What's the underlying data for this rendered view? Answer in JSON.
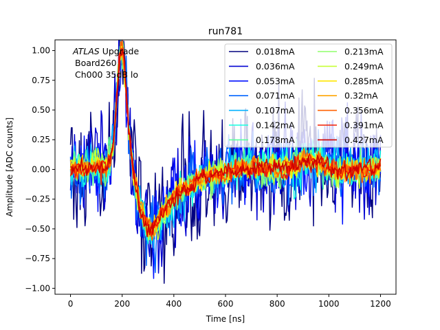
{
  "chart_data": {
    "type": "line",
    "title": "run781",
    "xlabel": "Time [ns]",
    "ylabel": "Amplitude [ADC counts]",
    "xlim": [
      -60,
      1260
    ],
    "ylim": [
      -1.05,
      1.09
    ],
    "xticks": [
      0,
      200,
      400,
      600,
      800,
      1000,
      1200
    ],
    "xtick_labels": [
      "0",
      "200",
      "400",
      "600",
      "800",
      "1000",
      "1200"
    ],
    "yticks": [
      -1.0,
      -0.75,
      -0.5,
      -0.25,
      0.0,
      0.25,
      0.5,
      0.75,
      1.0
    ],
    "ytick_labels": [
      "−1.00",
      "−0.75",
      "−0.50",
      "−0.25",
      "0.00",
      "0.25",
      "0.50",
      "0.75",
      "1.00"
    ],
    "legend_position": "top-right",
    "legend_columns": 2,
    "annotation": {
      "line1_italic": "ATLAS",
      "line1_rest": " Upgrade",
      "line2": "Board260",
      "line3": "Ch000 35dB lo"
    },
    "x_range_ns": [
      0,
      1200
    ],
    "sample_step_ns": 3.125,
    "pulse_shape": {
      "peak_time_ns": 198,
      "peak_amplitude": 0.99,
      "undershoot_time_ns": 310,
      "undershoot_amplitude": -0.56,
      "bump_time_ns": 930,
      "bump_amplitude": 0.09
    },
    "series": [
      {
        "name": "0.018mA",
        "color": "#00007f",
        "noise": 0.26
      },
      {
        "name": "0.036mA",
        "color": "#0000d1",
        "noise": 0.2
      },
      {
        "name": "0.053mA",
        "color": "#0010ff",
        "noise": 0.16
      },
      {
        "name": "0.071mA",
        "color": "#0064ff",
        "noise": 0.13
      },
      {
        "name": "0.107mA",
        "color": "#00b0ff",
        "noise": 0.1
      },
      {
        "name": "0.142mA",
        "color": "#16ffe1",
        "noise": 0.085
      },
      {
        "name": "0.178mA",
        "color": "#5aff9e",
        "noise": 0.072
      },
      {
        "name": "0.213mA",
        "color": "#8fff6a",
        "noise": 0.062
      },
      {
        "name": "0.249mA",
        "color": "#c6ff34",
        "noise": 0.055
      },
      {
        "name": "0.285mA",
        "color": "#ffe600",
        "noise": 0.05
      },
      {
        "name": "0.32mA",
        "color": "#ffa400",
        "noise": 0.046
      },
      {
        "name": "0.356mA",
        "color": "#ff6000",
        "noise": 0.043
      },
      {
        "name": "0.391mA",
        "color": "#f21d00",
        "noise": 0.04
      },
      {
        "name": "0.427mA",
        "color": "#cd0000",
        "noise": 0.038
      }
    ]
  }
}
